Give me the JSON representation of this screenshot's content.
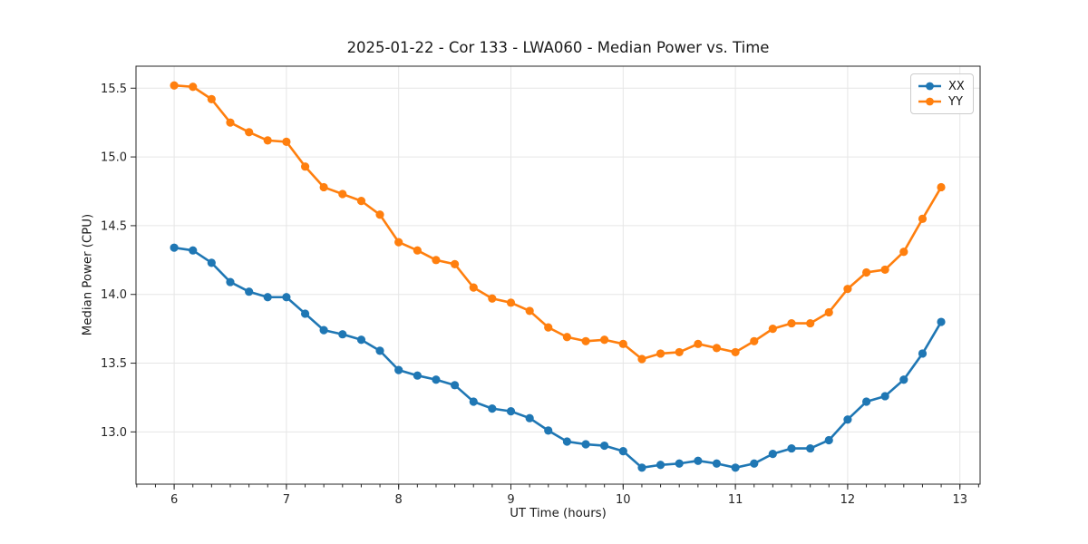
{
  "chart_data": {
    "type": "line",
    "title": "2025-01-22 - Cor 133 - LWA060 - Median Power vs. Time",
    "xlabel": "UT Time (hours)",
    "ylabel": "Median Power (CPU)",
    "grid": true,
    "legend_position": "upper right",
    "xlim": [
      5.66,
      13.18
    ],
    "ylim": [
      12.62,
      15.66
    ],
    "xticks": [
      6,
      7,
      8,
      9,
      10,
      11,
      12,
      13
    ],
    "xtick_labels": [
      "6",
      "7",
      "8",
      "9",
      "10",
      "11",
      "12",
      "13"
    ],
    "x_minor_step": 0.1666667,
    "yticks": [
      13.0,
      13.5,
      14.0,
      14.5,
      15.0,
      15.5
    ],
    "ytick_labels": [
      "13.0",
      "13.5",
      "14.0",
      "14.5",
      "15.0",
      "15.5"
    ],
    "x": [
      6.0,
      6.167,
      6.333,
      6.5,
      6.667,
      6.833,
      7.0,
      7.167,
      7.333,
      7.5,
      7.667,
      7.833,
      8.0,
      8.167,
      8.333,
      8.5,
      8.667,
      8.833,
      9.0,
      9.167,
      9.333,
      9.5,
      9.667,
      9.833,
      10.0,
      10.167,
      10.333,
      10.5,
      10.667,
      10.833,
      11.0,
      11.167,
      11.333,
      11.5,
      11.667,
      11.833,
      12.0,
      12.167,
      12.333,
      12.5,
      12.667,
      12.833
    ],
    "series": [
      {
        "name": "XX",
        "color": "#1f77b4",
        "values": [
          14.34,
          14.32,
          14.23,
          14.09,
          14.02,
          13.98,
          13.98,
          13.86,
          13.74,
          13.71,
          13.67,
          13.59,
          13.45,
          13.41,
          13.38,
          13.34,
          13.22,
          13.17,
          13.15,
          13.1,
          13.01,
          12.93,
          12.91,
          12.9,
          12.86,
          12.74,
          12.76,
          12.77,
          12.79,
          12.77,
          12.74,
          12.77,
          12.84,
          12.88,
          12.88,
          12.94,
          13.09,
          13.22,
          13.26,
          13.38,
          13.57,
          13.8
        ]
      },
      {
        "name": "YY",
        "color": "#ff7f0e",
        "values": [
          15.52,
          15.51,
          15.42,
          15.25,
          15.18,
          15.12,
          15.11,
          14.93,
          14.78,
          14.73,
          14.68,
          14.58,
          14.38,
          14.32,
          14.25,
          14.22,
          14.05,
          13.97,
          13.94,
          13.88,
          13.76,
          13.69,
          13.66,
          13.67,
          13.64,
          13.53,
          13.57,
          13.58,
          13.64,
          13.61,
          13.58,
          13.66,
          13.75,
          13.79,
          13.79,
          13.87,
          14.04,
          14.16,
          14.18,
          14.31,
          14.55,
          14.78
        ]
      }
    ]
  }
}
